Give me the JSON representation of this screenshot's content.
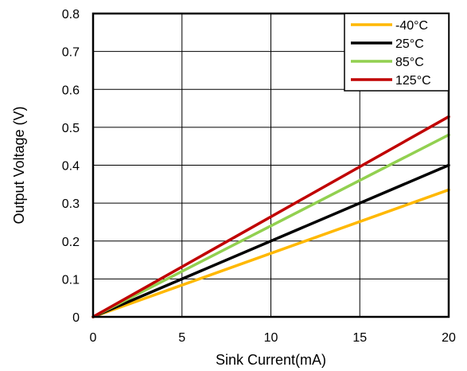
{
  "chart_data": {
    "type": "line",
    "title": "",
    "xlabel": "Sink Current(mA)",
    "ylabel": "Output Voltage (V)",
    "xlim": [
      0,
      20
    ],
    "ylim": [
      0,
      0.8
    ],
    "xticks": [
      "0",
      "5",
      "10",
      "15",
      "20"
    ],
    "yticks": [
      "0",
      "0.1",
      "0.2",
      "0.3",
      "0.4",
      "0.5",
      "0.6",
      "0.7",
      "0.8"
    ],
    "grid": true,
    "legend_position": "top-right",
    "series": [
      {
        "name": "-40°C",
        "color": "#FFB800",
        "x": [
          0,
          20
        ],
        "y": [
          0,
          0.335
        ]
      },
      {
        "name": "25°C",
        "color": "#000000",
        "x": [
          0,
          20
        ],
        "y": [
          0,
          0.4
        ]
      },
      {
        "name": "85°C",
        "color": "#92D050",
        "x": [
          0,
          20
        ],
        "y": [
          0,
          0.48
        ]
      },
      {
        "name": "125°C",
        "color": "#C00000",
        "x": [
          0,
          20
        ],
        "y": [
          0,
          0.528
        ]
      }
    ]
  }
}
